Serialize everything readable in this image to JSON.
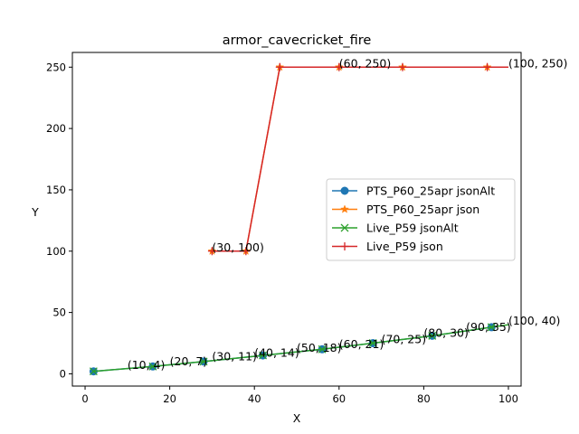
{
  "chart_data": {
    "type": "line",
    "title": "armor_cavecricket_fire",
    "xlabel": "X",
    "ylabel": "Y",
    "xlim": [
      -3,
      103
    ],
    "ylim": [
      -10,
      262
    ],
    "xticks": [
      0,
      20,
      40,
      60,
      80,
      100
    ],
    "yticks": [
      0,
      50,
      100,
      150,
      200,
      250
    ],
    "legend_position": "center-right",
    "series": [
      {
        "name": "PTS_P60_25apr jsonAlt",
        "color": "#1f77b4",
        "marker": "circle",
        "x": [
          2,
          16,
          28,
          42,
          56,
          68,
          82,
          96
        ],
        "y": [
          2,
          6,
          10,
          15,
          20,
          25,
          31,
          38
        ],
        "marker_every": [
          0,
          1,
          2,
          3,
          4,
          5,
          6,
          7
        ]
      },
      {
        "name": "PTS_P60_25apr json",
        "color": "#ff7f0e",
        "marker": "star",
        "x": [
          30,
          38,
          46,
          60,
          75,
          95,
          100
        ],
        "y": [
          100,
          100,
          250,
          250,
          250,
          250,
          250
        ],
        "marker_every": [
          0,
          1,
          2,
          3,
          4,
          5
        ]
      },
      {
        "name": "Live_P59 jsonAlt",
        "color": "#2ca02c",
        "marker": "x",
        "x": [
          2,
          16,
          28,
          42,
          56,
          68,
          82,
          96,
          100
        ],
        "y": [
          2,
          6,
          10,
          15,
          20,
          25,
          31,
          38,
          40
        ],
        "marker_every": [
          0,
          1,
          2,
          3,
          4,
          5,
          6,
          7
        ]
      },
      {
        "name": "Live_P59 json",
        "color": "#d62728",
        "marker": "plus",
        "x": [
          30,
          38,
          46,
          60,
          75,
          95,
          100
        ],
        "y": [
          100,
          100,
          250,
          250,
          250,
          250,
          250
        ],
        "marker_every": [
          0,
          1,
          2,
          3,
          4,
          5
        ]
      }
    ],
    "annotations": [
      {
        "text": "(10, 4)",
        "x": 10,
        "y": 4
      },
      {
        "text": "(20, 7)",
        "x": 20,
        "y": 7
      },
      {
        "text": "(30, 11)",
        "x": 30,
        "y": 11
      },
      {
        "text": "(40, 14)",
        "x": 40,
        "y": 14
      },
      {
        "text": "(50, 18)",
        "x": 50,
        "y": 18
      },
      {
        "text": "(60, 21)",
        "x": 60,
        "y": 21
      },
      {
        "text": "(70, 25)",
        "x": 70,
        "y": 25
      },
      {
        "text": "(80, 30)",
        "x": 80,
        "y": 30
      },
      {
        "text": "(90, 35)",
        "x": 90,
        "y": 35
      },
      {
        "text": "(100, 40)",
        "x": 100,
        "y": 40
      },
      {
        "text": "(30, 100)",
        "x": 30,
        "y": 100
      },
      {
        "text": "(60, 250)",
        "x": 60,
        "y": 250
      },
      {
        "text": "(100, 250)",
        "x": 100,
        "y": 250
      }
    ]
  }
}
